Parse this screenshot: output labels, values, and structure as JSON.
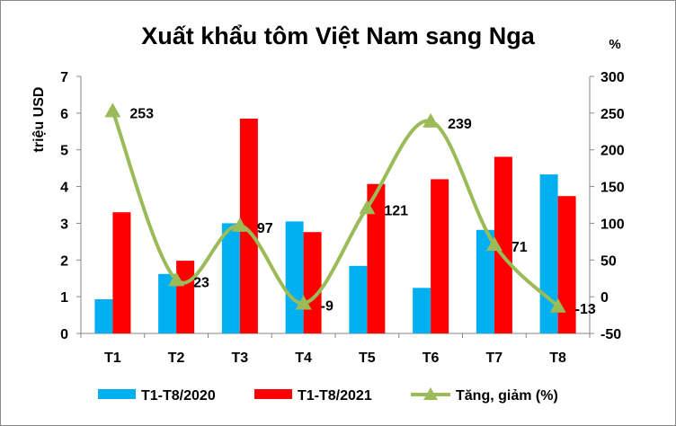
{
  "chart_data": {
    "type": "bar",
    "title": "Xuất khẩu tôm Việt Nam sang Nga",
    "ylabel": "triệu USD",
    "y2label": "%",
    "categories": [
      "T1",
      "T2",
      "T3",
      "T4",
      "T5",
      "T6",
      "T7",
      "T8"
    ],
    "ylim": [
      0,
      7
    ],
    "y_ticks": [
      0,
      1,
      2,
      3,
      4,
      5,
      6,
      7
    ],
    "y2lim": [
      -50,
      300
    ],
    "y2_ticks": [
      -50,
      0,
      50,
      100,
      150,
      200,
      250,
      300
    ],
    "series": [
      {
        "name": "T1-T8/2020",
        "type": "bar",
        "axis": "left",
        "color": "#00B0F0",
        "values": [
          0.93,
          1.62,
          3.0,
          3.05,
          1.84,
          1.24,
          2.82,
          4.33
        ]
      },
      {
        "name": "T1-T8/2021",
        "type": "bar",
        "axis": "left",
        "color": "#FF0000",
        "values": [
          3.3,
          1.98,
          5.85,
          2.76,
          4.07,
          4.2,
          4.81,
          3.74
        ]
      },
      {
        "name": "Tăng, giảm (%)",
        "type": "line",
        "axis": "right",
        "color": "#9BBB59",
        "smooth": true,
        "marker": "triangle",
        "values": [
          253,
          23,
          97,
          -9,
          121,
          239,
          71,
          -13
        ],
        "labels": [
          "253",
          "23",
          "97",
          "-9",
          "121",
          "239",
          "71",
          "-13"
        ]
      }
    ],
    "grid": false,
    "legend_position": "bottom"
  }
}
